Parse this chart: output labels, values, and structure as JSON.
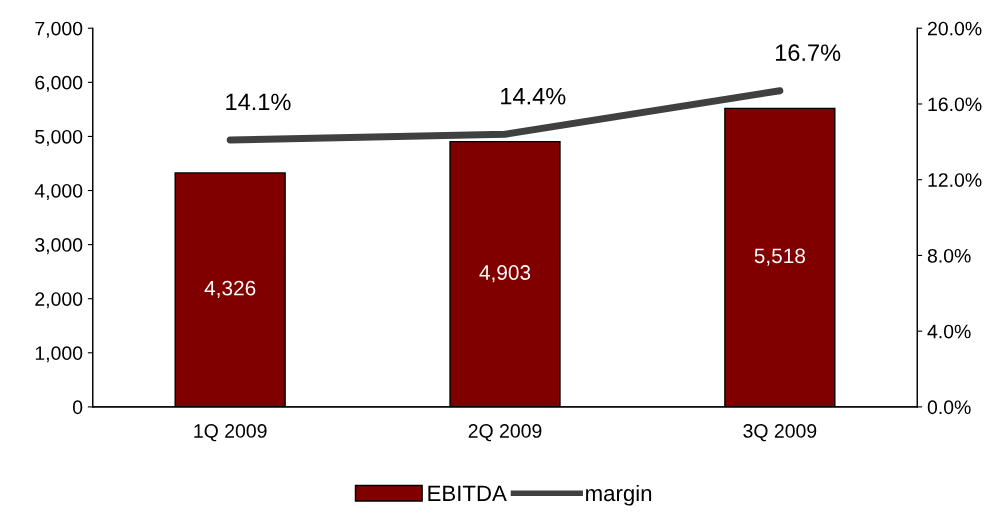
{
  "chart_data": {
    "type": "bar",
    "categories": [
      "1Q 2009",
      "2Q 2009",
      "3Q 2009"
    ],
    "series": [
      {
        "name": "EBITDA",
        "color": "#800000",
        "values": [
          4326,
          4903,
          5518
        ],
        "value_labels": [
          "4,326",
          "4,903",
          "5,518"
        ]
      },
      {
        "name": "margin",
        "type": "line",
        "axis": "y2",
        "color": "#404040",
        "values": [
          14.1,
          14.4,
          16.7
        ],
        "value_labels": [
          "14.1%",
          "14.4%",
          "16.7%"
        ]
      }
    ],
    "ylim": [
      0,
      7000
    ],
    "yticks": [
      0,
      {
        "value": 1000,
        "label": "1,000"
      },
      {
        "value": 2000,
        "label": "2,000"
      },
      {
        "value": 3000,
        "label": "3,000"
      },
      {
        "value": 4000,
        "label": "4,000"
      },
      {
        "value": 5000,
        "label": "5,000"
      },
      {
        "value": 6000,
        "label": "6,000"
      },
      {
        "value": 7000,
        "label": "7,000"
      }
    ],
    "y2lim": [
      0,
      20
    ],
    "y2ticks": [
      {
        "value": 0,
        "label": "0.0%"
      },
      {
        "value": 4,
        "label": "4.0%"
      },
      {
        "value": 8,
        "label": "8.0%"
      },
      {
        "value": 12,
        "label": "12.0%"
      },
      {
        "value": 16,
        "label": "16.0%"
      },
      {
        "value": 20,
        "label": "20.0%"
      }
    ],
    "grid": false,
    "legend": "bottom",
    "marker": "none",
    "line_style": "solid"
  }
}
